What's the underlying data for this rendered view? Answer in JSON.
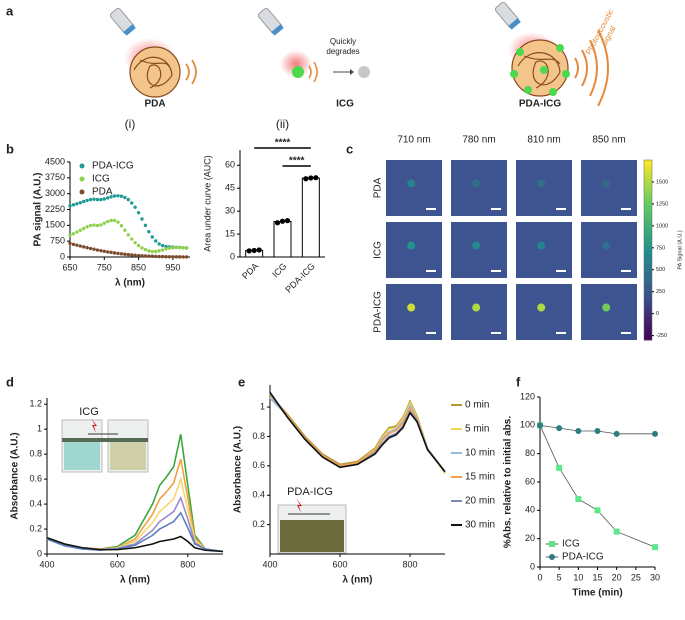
{
  "diagram": {
    "label": "a",
    "items": [
      "PDA",
      "ICG",
      "PDA-ICG"
    ],
    "note": [
      "Quickly",
      "degrades"
    ],
    "signal": [
      "Photoacoustic",
      "signal"
    ]
  },
  "chart_data": [
    {
      "type": "scatter",
      "label": "b",
      "title": "(i)",
      "xlabel": "λ (nm)",
      "ylabel": "PA signal (A.U.)",
      "x": [
        650,
        660,
        670,
        680,
        690,
        700,
        710,
        720,
        730,
        740,
        750,
        760,
        770,
        780,
        790,
        800,
        810,
        820,
        830,
        840,
        850,
        860,
        870,
        880,
        890,
        900,
        910,
        920,
        930,
        940,
        950,
        960,
        970,
        980,
        990
      ],
      "xlim": [
        650,
        1000
      ],
      "xticks": [
        650,
        750,
        850,
        950
      ],
      "ylim": [
        0,
        4500
      ],
      "yticks": [
        0,
        750,
        1500,
        2250,
        3000,
        3750,
        4500
      ],
      "legend": "upper left",
      "series": [
        {
          "name": "PDA-ICG",
          "color": "#1f9a94",
          "values": [
            2420,
            2470,
            2520,
            2570,
            2630,
            2680,
            2720,
            2740,
            2720,
            2720,
            2750,
            2800,
            2850,
            2890,
            2900,
            2880,
            2820,
            2720,
            2560,
            2360,
            2100,
            1800,
            1500,
            1200,
            950,
            760,
            620,
            540,
            500,
            480,
            470,
            460,
            450,
            440,
            430
          ]
        },
        {
          "name": "ICG",
          "color": "#8fd14f",
          "values": [
            1030,
            1100,
            1180,
            1270,
            1350,
            1430,
            1490,
            1510,
            1490,
            1520,
            1600,
            1680,
            1730,
            1730,
            1650,
            1480,
            1270,
            1050,
            850,
            680,
            540,
            430,
            350,
            290,
            260,
            260,
            290,
            330,
            380,
            420,
            440,
            450,
            450,
            440,
            420
          ]
        },
        {
          "name": "PDA",
          "color": "#7b4a2a",
          "values": [
            650,
            600,
            560,
            520,
            480,
            440,
            400,
            370,
            330,
            300,
            270,
            240,
            220,
            190,
            170,
            150,
            130,
            115,
            100,
            85,
            70,
            60,
            50,
            42,
            35,
            28,
            22,
            18,
            14,
            11,
            9,
            7,
            6,
            5,
            4
          ]
        }
      ]
    },
    {
      "type": "bar",
      "title": "(ii)",
      "ylabel": "Area under curve (AUC)",
      "categories": [
        "PDA",
        "ICG",
        "PDA-ICG"
      ],
      "values": [
        4.3,
        23.2,
        51.6
      ],
      "points": [
        [
          4.0,
          4.3,
          4.6
        ],
        [
          22.4,
          23.4,
          23.8
        ],
        [
          51.2,
          51.7,
          51.9
        ]
      ],
      "color": "#ffffff",
      "ylim": [
        0,
        70
      ],
      "yticks": [
        0,
        15,
        30,
        45,
        60
      ],
      "annotations": [
        "****",
        "****"
      ]
    },
    {
      "type": "image",
      "label": "c",
      "columns": [
        "710 nm",
        "780 nm",
        "810 nm",
        "850 nm"
      ],
      "rows": [
        "PDA",
        "ICG",
        "PDA-ICG"
      ],
      "values": [
        [
          600,
          450,
          450,
          400
        ],
        [
          750,
          650,
          600,
          450
        ],
        [
          1600,
          1500,
          1500,
          1300
        ]
      ],
      "clim": [
        -300,
        1750
      ],
      "cticks": [
        -250,
        0,
        250,
        500,
        750,
        1000,
        1250,
        1500
      ],
      "clabel": "PA Signal (A.U.)"
    },
    {
      "type": "line",
      "label": "d",
      "inset_label": "ICG",
      "xlabel": "λ (nm)",
      "ylabel": "Absorbance (A.U.)",
      "x": [
        400,
        450,
        500,
        550,
        600,
        650,
        700,
        720,
        740,
        760,
        780,
        800,
        820,
        850,
        900
      ],
      "xlim": [
        400,
        900
      ],
      "xticks": [
        400,
        600,
        800
      ],
      "ylim": [
        0,
        1.25
      ],
      "yticks": [
        0,
        0.2,
        0.4,
        0.6,
        0.8,
        1,
        1.2
      ],
      "series": [
        {
          "color": "#3aa83a",
          "values": [
            0.13,
            0.08,
            0.05,
            0.04,
            0.06,
            0.15,
            0.4,
            0.55,
            0.62,
            0.7,
            0.96,
            0.55,
            0.15,
            0.04,
            0.02
          ]
        },
        {
          "color": "#f0a040",
          "values": [
            0.12,
            0.07,
            0.05,
            0.04,
            0.05,
            0.12,
            0.32,
            0.44,
            0.5,
            0.57,
            0.76,
            0.45,
            0.13,
            0.04,
            0.02
          ]
        },
        {
          "color": "#f5d76e",
          "values": [
            0.12,
            0.07,
            0.045,
            0.035,
            0.05,
            0.1,
            0.25,
            0.34,
            0.39,
            0.44,
            0.6,
            0.36,
            0.11,
            0.04,
            0.02
          ]
        },
        {
          "color": "#9c8ad0",
          "values": [
            0.12,
            0.07,
            0.04,
            0.035,
            0.045,
            0.08,
            0.19,
            0.26,
            0.3,
            0.34,
            0.45,
            0.28,
            0.09,
            0.04,
            0.02
          ]
        },
        {
          "color": "#5a7fc0",
          "values": [
            0.12,
            0.065,
            0.04,
            0.03,
            0.04,
            0.07,
            0.15,
            0.2,
            0.23,
            0.26,
            0.33,
            0.21,
            0.08,
            0.04,
            0.02
          ]
        },
        {
          "color": "#111111",
          "values": [
            0.13,
            0.08,
            0.05,
            0.035,
            0.035,
            0.05,
            0.08,
            0.1,
            0.11,
            0.12,
            0.14,
            0.1,
            0.05,
            0.03,
            0.02
          ]
        }
      ]
    },
    {
      "type": "line",
      "label": "e",
      "inset_label": "PDA-ICG",
      "xlabel": "λ (nm)",
      "ylabel": "Absorbance (A.U.)",
      "x": [
        400,
        450,
        500,
        550,
        600,
        650,
        700,
        720,
        740,
        760,
        780,
        800,
        820,
        850,
        900
      ],
      "xlim": [
        400,
        900
      ],
      "xticks": [
        400,
        600,
        800
      ],
      "ylim": [
        0,
        1.15
      ],
      "yticks": [
        0.2,
        0.4,
        0.6,
        0.8,
        1
      ],
      "legend": "right",
      "series": [
        {
          "name": "0 min",
          "color": "#b8962e",
          "values": [
            1.08,
            0.95,
            0.8,
            0.68,
            0.61,
            0.63,
            0.72,
            0.8,
            0.86,
            0.87,
            0.93,
            1.04,
            0.94,
            0.72,
            0.55
          ]
        },
        {
          "name": "5 min",
          "color": "#f2d15a",
          "values": [
            1.07,
            0.94,
            0.79,
            0.67,
            0.6,
            0.62,
            0.71,
            0.79,
            0.85,
            0.86,
            0.92,
            1.03,
            0.93,
            0.72,
            0.55
          ]
        },
        {
          "name": "10 min",
          "color": "#9ab8e0",
          "values": [
            1.06,
            0.94,
            0.79,
            0.67,
            0.6,
            0.62,
            0.7,
            0.78,
            0.83,
            0.85,
            0.9,
            1.01,
            0.92,
            0.72,
            0.56
          ]
        },
        {
          "name": "15 min",
          "color": "#f0a050",
          "values": [
            1.09,
            0.94,
            0.79,
            0.67,
            0.6,
            0.62,
            0.7,
            0.77,
            0.82,
            0.84,
            0.89,
            0.99,
            0.92,
            0.71,
            0.56
          ]
        },
        {
          "name": "20 min",
          "color": "#7a8ab5",
          "values": [
            1.09,
            0.93,
            0.78,
            0.66,
            0.59,
            0.61,
            0.69,
            0.75,
            0.8,
            0.82,
            0.87,
            0.97,
            0.91,
            0.71,
            0.56
          ]
        },
        {
          "name": "30 min",
          "color": "#111111",
          "values": [
            1.1,
            0.93,
            0.78,
            0.66,
            0.59,
            0.61,
            0.68,
            0.74,
            0.79,
            0.81,
            0.86,
            0.96,
            0.9,
            0.71,
            0.56
          ]
        }
      ]
    },
    {
      "type": "line",
      "label": "f",
      "xlabel": "Time (min)",
      "ylabel": "%Abs. relative to initial abs.",
      "x": [
        0,
        5,
        10,
        15,
        20,
        30
      ],
      "xlim": [
        0,
        30
      ],
      "xticks": [
        0,
        5,
        10,
        15,
        20,
        25,
        30
      ],
      "ylim": [
        0,
        120
      ],
      "yticks": [
        0,
        20,
        40,
        60,
        80,
        100,
        120
      ],
      "legend": "lower left",
      "series": [
        {
          "name": "ICG",
          "color": "#5ee88a",
          "marker": "square",
          "values": [
            100,
            70,
            48,
            40,
            25,
            14
          ]
        },
        {
          "name": "PDA-ICG",
          "color": "#2e7d80",
          "marker": "circle",
          "values": [
            100,
            98,
            96,
            96,
            94,
            94
          ]
        }
      ]
    }
  ]
}
